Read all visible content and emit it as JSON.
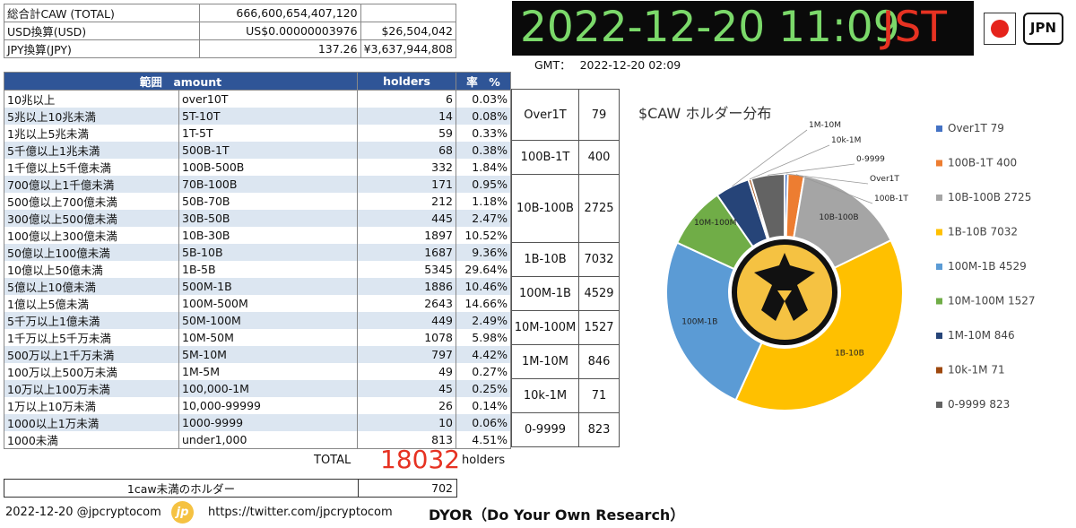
{
  "summary": {
    "rows": [
      {
        "label": "総合計CAW (TOTAL)",
        "mid": "666,600,654,407,120",
        "right": ""
      },
      {
        "label": "USD換算(USD)",
        "mid": "US$0.00000003976",
        "right": "$26,504,042"
      },
      {
        "label": "JPY換算(JPY)",
        "mid": "137.26",
        "right": "¥3,637,944,808"
      }
    ]
  },
  "clock": {
    "time": "2022-12-20 11:09",
    "zone": "JST"
  },
  "gmt": {
    "label": "GMT：",
    "value": "2022-12-20 02:09"
  },
  "badge": {
    "text": "JPN"
  },
  "table": {
    "headers": {
      "range": "範囲　amount",
      "holders": "holders",
      "rate": "率　%"
    },
    "rows": [
      {
        "jp": "10兆以上",
        "amount": "over10T",
        "holders": "6",
        "pct": "0.03%"
      },
      {
        "jp": "5兆以上10兆未満",
        "amount": "5T-10T",
        "holders": "14",
        "pct": "0.08%"
      },
      {
        "jp": "1兆以上5兆未満",
        "amount": "1T-5T",
        "holders": "59",
        "pct": "0.33%"
      },
      {
        "jp": "5千億以上1兆未満",
        "amount": "500B-1T",
        "holders": "68",
        "pct": "0.38%"
      },
      {
        "jp": "1千億以上5千億未満",
        "amount": "100B-500B",
        "holders": "332",
        "pct": "1.84%"
      },
      {
        "jp": "700億以上1千億未満",
        "amount": "70B-100B",
        "holders": "171",
        "pct": "0.95%"
      },
      {
        "jp": "500億以上700億未満",
        "amount": "50B-70B",
        "holders": "212",
        "pct": "1.18%"
      },
      {
        "jp": "300億以上500億未満",
        "amount": "30B-50B",
        "holders": "445",
        "pct": "2.47%"
      },
      {
        "jp": "100億以上300億未満",
        "amount": "10B-30B",
        "holders": "1897",
        "pct": "10.52%"
      },
      {
        "jp": "50億以上100億未満",
        "amount": "5B-10B",
        "holders": "1687",
        "pct": "9.36%"
      },
      {
        "jp": "10億以上50億未満",
        "amount": "1B-5B",
        "holders": "5345",
        "pct": "29.64%"
      },
      {
        "jp": "5億以上10億未満",
        "amount": "500M-1B",
        "holders": "1886",
        "pct": "10.46%"
      },
      {
        "jp": "1億以上5億未満",
        "amount": "100M-500M",
        "holders": "2643",
        "pct": "14.66%"
      },
      {
        "jp": "5千万以上1億未満",
        "amount": "50M-100M",
        "holders": "449",
        "pct": "2.49%"
      },
      {
        "jp": "1千万以上5千万未満",
        "amount": "10M-50M",
        "holders": "1078",
        "pct": "5.98%"
      },
      {
        "jp": "500万以上1千万未満",
        "amount": "5M-10M",
        "holders": "797",
        "pct": "4.42%"
      },
      {
        "jp": "100万以上500万未満",
        "amount": "1M-5M",
        "holders": "49",
        "pct": "0.27%"
      },
      {
        "jp": "10万以上100万未満",
        "amount": "100,000-1M",
        "holders": "45",
        "pct": "0.25%"
      },
      {
        "jp": "1万以上10万未満",
        "amount": "10,000-99999",
        "holders": "26",
        "pct": "0.14%"
      },
      {
        "jp": "1000以上1万未満",
        "amount": "1000-9999",
        "holders": "10",
        "pct": "0.06%"
      },
      {
        "jp": "1000未満",
        "amount": "under1,000",
        "holders": "813",
        "pct": "4.51%"
      }
    ]
  },
  "groups": [
    {
      "label": "Over1T",
      "value": "79",
      "rows": 3
    },
    {
      "label": "100B-1T",
      "value": "400",
      "rows": 2
    },
    {
      "label": "10B-100B",
      "value": "2725",
      "rows": 4
    },
    {
      "label": "1B-10B",
      "value": "7032",
      "rows": 2
    },
    {
      "label": "100M-1B",
      "value": "4529",
      "rows": 2
    },
    {
      "label": "10M-100M",
      "value": "1527",
      "rows": 2
    },
    {
      "label": "1M-10M",
      "value": "846",
      "rows": 2
    },
    {
      "label": "10k-1M",
      "value": "71",
      "rows": 2
    },
    {
      "label": "0-9999",
      "value": "823",
      "rows": 2
    }
  ],
  "totals": {
    "label": "TOTAL",
    "value": "18032",
    "unit": "holders"
  },
  "sub": {
    "label": "1caw未満のホルダー",
    "value": "702"
  },
  "footer": {
    "date": "2022-12-20 @jpcryptocom",
    "logo": "jp",
    "url": "https://twitter.com/jpcryptocom",
    "dyor": "DYOR（Do Your Own Research）"
  },
  "chart_data": {
    "type": "pie",
    "donut": true,
    "title": "$CAW ホルダー分布",
    "categories": [
      "Over1T",
      "100B-1T",
      "10B-100B",
      "1B-10B",
      "100M-1B",
      "10M-100M",
      "1M-10M",
      "10k-1M",
      "0-9999"
    ],
    "values": [
      79,
      400,
      2725,
      7032,
      4529,
      1527,
      846,
      71,
      823
    ],
    "legend": [
      "Over1T 79",
      "100B-1T 400",
      "10B-100B 2725",
      "1B-10B 7032",
      "100M-1B 4529",
      "10M-100M 1527",
      "1M-10M 846",
      "10k-1M 71",
      "0-9999 823"
    ],
    "slice_labels": [
      "Over1T",
      "100B-1T",
      "10B-100B",
      "1B-10B",
      "100M-1B",
      "10M-100M",
      "1M-10M",
      "10k-1M",
      "0-9999"
    ],
    "colors": [
      "#4472c4",
      "#ed7d31",
      "#a5a5a5",
      "#ffc000",
      "#5b9bd5",
      "#70ad47",
      "#264478",
      "#9e480e",
      "#636363"
    ],
    "legend_position": "right",
    "center_logo_color": "#f5c242"
  }
}
